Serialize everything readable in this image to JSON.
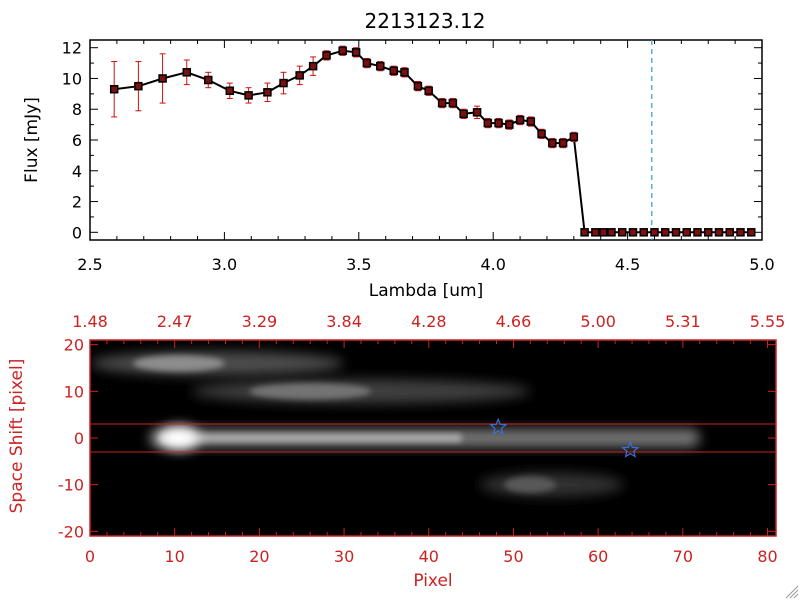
{
  "colors": {
    "axis_top": "#000000",
    "axis_bottom": "#cc2222",
    "series_line": "#000000",
    "errorbar": "#cc1111",
    "marker_edge": "#000000",
    "marker_fill": "#7a1010",
    "dashed_marker": "#2aa0c8",
    "band_line": "#cc2222",
    "star": "#3b6fd8",
    "image_background": "#000000"
  },
  "chart_data": [
    {
      "type": "line",
      "title": "2213123.12",
      "xlabel": "Lambda [um]",
      "ylabel": "Flux [mJy]",
      "xlim": [
        2.5,
        5.0
      ],
      "ylim": [
        -0.5,
        12.5
      ],
      "xticks": [
        2.5,
        3.0,
        3.5,
        4.0,
        4.5,
        5.0
      ],
      "xtick_labels": [
        "2.5",
        "3.0",
        "3.5",
        "4.0",
        "4.5",
        "5.0"
      ],
      "yticks": [
        0,
        2,
        4,
        6,
        8,
        10,
        12
      ],
      "ytick_labels": [
        "0",
        "2",
        "4",
        "6",
        "8",
        "10",
        "12"
      ],
      "vline_x": 4.59,
      "series": [
        {
          "name": "flux",
          "x": [
            2.59,
            2.68,
            2.77,
            2.86,
            2.94,
            3.02,
            3.09,
            3.16,
            3.22,
            3.28,
            3.33,
            3.38,
            3.44,
            3.49,
            3.53,
            3.58,
            3.63,
            3.67,
            3.72,
            3.76,
            3.81,
            3.85,
            3.89,
            3.94,
            3.98,
            4.02,
            4.06,
            4.1,
            4.14,
            4.18,
            4.22,
            4.26,
            4.3,
            4.34,
            4.38,
            4.41,
            4.44,
            4.48,
            4.52,
            4.56,
            4.6,
            4.64,
            4.68,
            4.72,
            4.76,
            4.8,
            4.84,
            4.88,
            4.92,
            4.96
          ],
          "y": [
            9.3,
            9.5,
            10.0,
            10.4,
            9.9,
            9.2,
            8.9,
            9.1,
            9.7,
            10.2,
            10.8,
            11.5,
            11.8,
            11.7,
            11.0,
            10.8,
            10.5,
            10.4,
            9.5,
            9.2,
            8.4,
            8.4,
            7.7,
            7.8,
            7.1,
            7.1,
            7.0,
            7.3,
            7.2,
            6.4,
            5.8,
            5.8,
            6.2,
            0.0,
            0.0,
            0.0,
            0.0,
            0.0,
            0.0,
            0.0,
            0.0,
            0.0,
            0.0,
            0.0,
            0.0,
            0.0,
            0.0,
            0.0,
            0.0,
            0.0
          ],
          "yerr": [
            1.8,
            1.6,
            1.6,
            0.8,
            0.5,
            0.5,
            0.5,
            0.6,
            0.7,
            0.6,
            0.6,
            0.3,
            0.3,
            0.3,
            0.3,
            0.3,
            0.3,
            0.3,
            0.3,
            0.3,
            0.3,
            0.3,
            0.3,
            0.4,
            0.3,
            0.3,
            0.3,
            0.3,
            0.3,
            0.3,
            0.3,
            0.3,
            0.3,
            0.1,
            0.1,
            0.1,
            0.1,
            0.1,
            0.1,
            0.1,
            0.1,
            0.1,
            0.1,
            0.1,
            0.1,
            0.1,
            0.1,
            0.1,
            0.1,
            0.1
          ]
        }
      ]
    },
    {
      "type": "heatmap",
      "xlabel": "Pixel",
      "ylabel": "Space Shift [pixel]",
      "xlim": [
        0,
        81
      ],
      "ylim": [
        -21,
        21
      ],
      "xticks": [
        0,
        10,
        20,
        30,
        40,
        50,
        60,
        70,
        80
      ],
      "xtick_labels": [
        "0",
        "10",
        "20",
        "30",
        "40",
        "50",
        "60",
        "70",
        "80"
      ],
      "yticks": [
        -20,
        -10,
        0,
        10,
        20
      ],
      "ytick_labels": [
        "-20",
        "-10",
        "0",
        "10",
        "20"
      ],
      "top_axis_label_positions": [
        0,
        10,
        20,
        30,
        40,
        50,
        60,
        70,
        80
      ],
      "top_axis_labels": [
        "1.48",
        "2.47",
        "3.29",
        "3.84",
        "4.28",
        "4.66",
        "5.00",
        "5.31",
        "5.55"
      ],
      "extraction_band_y": [
        -3,
        3
      ],
      "stars": [
        {
          "x": 48.2,
          "y": 2.3
        },
        {
          "x": 63.8,
          "y": -2.6
        }
      ],
      "sources": [
        {
          "name": "main trace",
          "x0": 7,
          "x1": 72,
          "y": 0,
          "peak": 1.0
        },
        {
          "name": "upper left blob",
          "x0": 0,
          "x1": 30,
          "y": 16,
          "peak": 0.55
        },
        {
          "name": "upper streak",
          "x0": 12,
          "x1": 52,
          "y": 10,
          "peak": 0.45
        },
        {
          "name": "lower right blob",
          "x0": 46,
          "x1": 63,
          "y": -10,
          "peak": 0.35
        }
      ]
    }
  ]
}
